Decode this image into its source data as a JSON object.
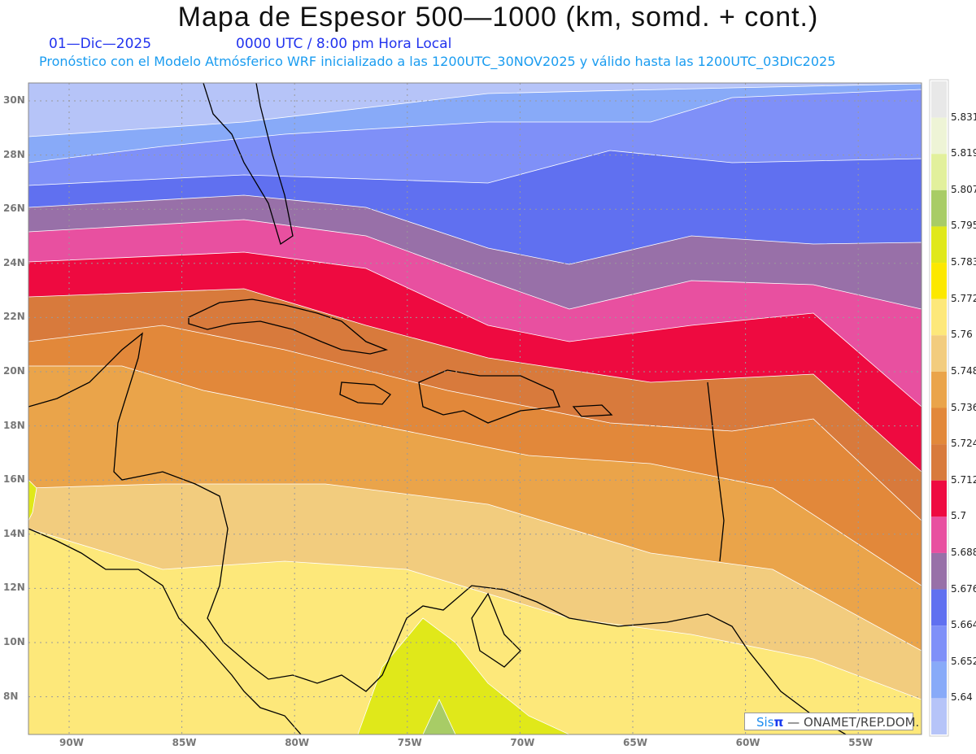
{
  "title": "Mapa de Espesor 500—1000 (km, somd. + cont.)",
  "date": "01—Dic—2025",
  "time": "0000 UTC / 8:00 pm Hora Local",
  "subtitle": "Pronóstico con el Modelo Atmósferico WRF inicializado a las 1200UTC_30NOV2025 y válido hasta las  1200UTC_03DIC2025",
  "lat_labels": [
    "30N",
    "28N",
    "26N",
    "24N",
    "22N",
    "20N",
    "18N",
    "16N",
    "14N",
    "12N",
    "10N",
    "8N"
  ],
  "lon_labels": [
    "90W",
    "85W",
    "80W",
    "75W",
    "70W",
    "65W",
    "60W",
    "55W"
  ],
  "colorbar": {
    "labels": [
      "5.831",
      "5.819",
      "5.807",
      "5.795",
      "5.783",
      "5.772",
      "5.76",
      "5.748",
      "5.736",
      "5.724",
      "5.712",
      "5.7",
      "5.688",
      "5.676",
      "5.664",
      "5.652",
      "5.64"
    ],
    "colors": [
      "#e8e8e8",
      "#eef4d6",
      "#e2f09c",
      "#a8cc66",
      "#e0e81a",
      "#fce800",
      "#fde87a",
      "#f2cc7e",
      "#eaa44a",
      "#e2883a",
      "#d87a3c",
      "#ee0a40",
      "#e850a0",
      "#9870a8",
      "#6070f0",
      "#7f90f8",
      "#88aaf8",
      "#b6c4f8"
    ]
  },
  "credit": {
    "brand": "Sis",
    "pi": "π",
    "text": "—  ONAMET/REP.DOM."
  }
}
